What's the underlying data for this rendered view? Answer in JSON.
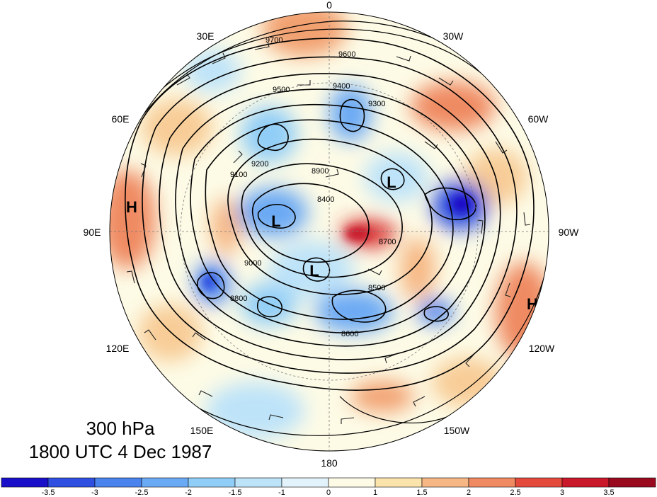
{
  "map": {
    "projection": "north-polar-stereographic",
    "field": "geopotential height contours with shaded anomaly and wind barbs",
    "longitude_labels": {
      "top": "0",
      "upper_left": "30E",
      "upper_right": "30W",
      "left_high": "60E",
      "right_high": "60W",
      "left_mid": "90E",
      "right_mid": "90W",
      "left_low": "120E",
      "right_low": "120W",
      "lower_left": "150E",
      "lower_right": "150W",
      "bottom": "180"
    },
    "contour_labels": [
      "9700",
      "9600",
      "9500",
      "9400",
      "9300",
      "9200",
      "9100",
      "9000",
      "8900",
      "8800",
      "8700",
      "8600",
      "8500",
      "8400"
    ],
    "pressure_centers": [
      {
        "type": "H",
        "region": "west (90E)"
      },
      {
        "type": "H",
        "region": "east (110W)"
      },
      {
        "type": "L",
        "region": "central-east"
      },
      {
        "type": "L",
        "region": "central-west"
      },
      {
        "type": "L",
        "region": "central-south"
      }
    ],
    "colors": {
      "ocean_bg": "#ffffff",
      "contour": "#000000",
      "neutral_shade": "#fdfbe6"
    }
  },
  "caption": {
    "level": "300 hPa",
    "time": "1800 UTC 4 Dec 1987"
  },
  "colorbar": {
    "tick_labels": [
      "-3.5",
      "-3",
      "-2.5",
      "-2",
      "-1.5",
      "-1",
      "0",
      "1",
      "1.5",
      "2",
      "2.5",
      "3",
      "3.5"
    ],
    "colors": [
      "#1a0fc8",
      "#2f4fe0",
      "#4a82ee",
      "#6aa9f4",
      "#90cdf7",
      "#bde3f9",
      "#e3f3fb",
      "#fdfbe6",
      "#fbe3ac",
      "#f6b784",
      "#ef8a62",
      "#e34a3c",
      "#c8182a",
      "#9a0a1e"
    ]
  }
}
